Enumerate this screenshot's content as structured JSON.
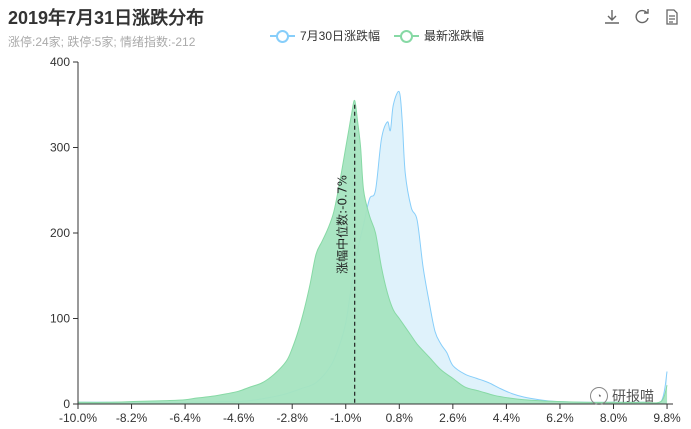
{
  "header": {
    "title": "2019年7月31日涨跌分布",
    "subtitle": "涨停:24家; 跌停:5家; 情绪指数:-212"
  },
  "toolbox": {
    "icons": [
      "download-icon",
      "refresh-icon",
      "data-view-icon"
    ]
  },
  "watermark": {
    "text": "研报喵"
  },
  "chart_data": {
    "type": "area",
    "title": "2019年7月31日涨跌分布",
    "xlabel": "",
    "ylabel": "",
    "xlim": [
      -10.0,
      10.0
    ],
    "ylim": [
      0,
      400
    ],
    "x_ticks": [
      "-10.0%",
      "-8.2%",
      "-6.4%",
      "-4.6%",
      "-2.8%",
      "-1.0%",
      "0.8%",
      "2.6%",
      "4.4%",
      "6.2%",
      "8.0%",
      "9.8%"
    ],
    "y_ticks": [
      0,
      100,
      200,
      300,
      400
    ],
    "legend_position": "top-center",
    "grid": false,
    "series": [
      {
        "name": "7月30日涨跌幅",
        "color": "#87cefa",
        "fill": "#dff2fb",
        "x": [
          -10,
          -9,
          -8,
          -7,
          -6,
          -5,
          -4.5,
          -4,
          -3.5,
          -3,
          -2.5,
          -2,
          -1.5,
          -1.2,
          -1,
          -0.8,
          -0.6,
          -0.4,
          -0.2,
          0,
          0.2,
          0.4,
          0.5,
          0.6,
          0.8,
          0.9,
          1,
          1.2,
          1.4,
          1.6,
          1.8,
          2,
          2.2,
          2.4,
          2.6,
          3,
          3.4,
          3.8,
          4.2,
          4.6,
          5,
          5.5,
          6,
          7,
          8,
          9,
          9.6,
          9.8
        ],
        "values": [
          2,
          2,
          2,
          2,
          2,
          3,
          3,
          5,
          8,
          12,
          18,
          25,
          45,
          70,
          95,
          140,
          180,
          210,
          240,
          250,
          310,
          330,
          320,
          350,
          365,
          330,
          270,
          230,
          215,
          160,
          120,
          85,
          70,
          60,
          45,
          35,
          30,
          25,
          18,
          12,
          8,
          5,
          3,
          2,
          2,
          2,
          3,
          38
        ]
      },
      {
        "name": "最新涨跌幅",
        "color": "#87d9a5",
        "fill": "#a5e4c0",
        "x": [
          -10,
          -9,
          -8,
          -7,
          -6.4,
          -6,
          -5.5,
          -5,
          -4.6,
          -4.2,
          -3.8,
          -3.4,
          -3,
          -2.8,
          -2.6,
          -2.4,
          -2.2,
          -2,
          -1.8,
          -1.6,
          -1.4,
          -1.2,
          -1,
          -0.9,
          -0.8,
          -0.7,
          -0.6,
          -0.5,
          -0.4,
          -0.2,
          0,
          0.2,
          0.4,
          0.6,
          0.8,
          1,
          1.2,
          1.4,
          1.8,
          2.2,
          2.6,
          3,
          3.5,
          4,
          4.5,
          5,
          6,
          7,
          8,
          9,
          9.6,
          9.8
        ],
        "values": [
          2,
          2,
          3,
          4,
          5,
          7,
          9,
          12,
          15,
          20,
          25,
          35,
          50,
          65,
          85,
          110,
          140,
          175,
          190,
          205,
          225,
          260,
          300,
          320,
          340,
          355,
          330,
          300,
          250,
          220,
          200,
          160,
          130,
          110,
          100,
          90,
          80,
          70,
          55,
          40,
          30,
          20,
          15,
          10,
          7,
          5,
          3,
          2,
          2,
          2,
          3,
          22
        ]
      }
    ],
    "annotations": [
      {
        "type": "median-line",
        "x": -0.7,
        "label": "涨幅中位数:-0.7%"
      }
    ]
  }
}
